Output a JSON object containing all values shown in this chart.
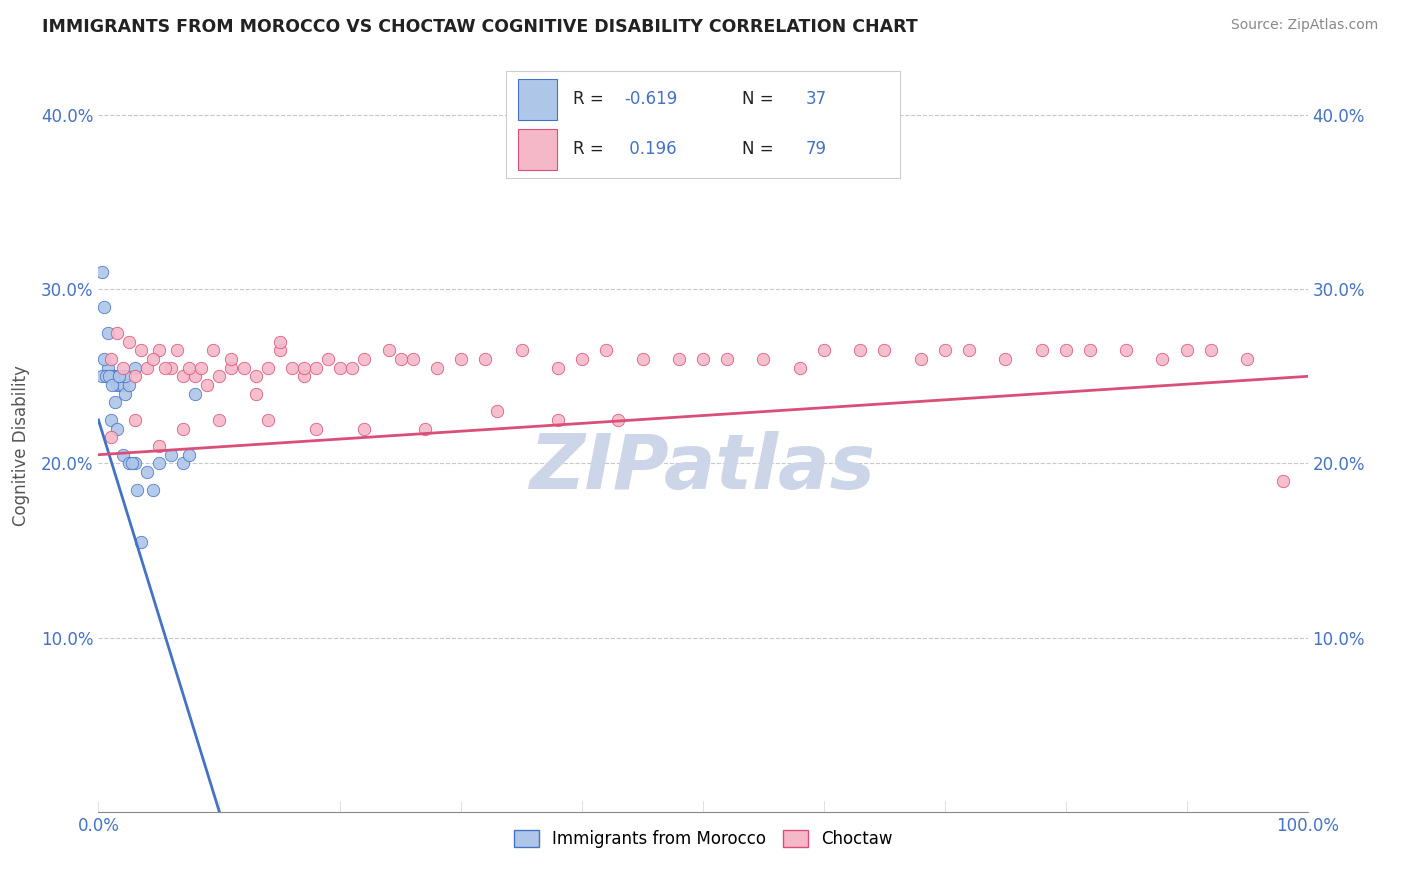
{
  "title": "IMMIGRANTS FROM MOROCCO VS CHOCTAW COGNITIVE DISABILITY CORRELATION CHART",
  "source": "Source: ZipAtlas.com",
  "ylabel": "Cognitive Disability",
  "legend_label1": "Immigrants from Morocco",
  "legend_label2": "Choctaw",
  "R1": -0.619,
  "N1": 37,
  "R2": 0.196,
  "N2": 79,
  "color_blue": "#aec6e8",
  "color_pink": "#f5b8c8",
  "color_blue_line": "#4472c4",
  "color_pink_line": "#d94f7a",
  "color_blue_text": "#4472c4",
  "color_title": "#222222",
  "watermark": "ZIPatlas",
  "blue_scatter_x": [
    0.3,
    0.5,
    0.8,
    1.0,
    1.2,
    1.5,
    1.8,
    2.0,
    2.2,
    2.5,
    3.0,
    3.2,
    4.0,
    5.0,
    6.0,
    7.0,
    7.5,
    8.0,
    1.0,
    1.5,
    2.0,
    2.5,
    3.0,
    0.5,
    0.8,
    1.2,
    1.6,
    2.2,
    0.3,
    0.6,
    0.9,
    1.1,
    1.4,
    1.7,
    2.8,
    3.5,
    4.5
  ],
  "blue_scatter_y": [
    31.0,
    29.0,
    25.5,
    25.0,
    25.0,
    24.5,
    24.5,
    24.5,
    24.0,
    24.5,
    25.5,
    18.5,
    19.5,
    20.0,
    20.5,
    20.0,
    20.5,
    24.0,
    22.5,
    22.0,
    20.5,
    20.0,
    20.0,
    26.0,
    27.5,
    25.0,
    25.0,
    25.0,
    25.0,
    25.0,
    25.0,
    24.5,
    23.5,
    25.0,
    20.0,
    15.5,
    18.5
  ],
  "pink_scatter_x": [
    1.0,
    2.0,
    3.0,
    4.0,
    5.0,
    6.0,
    7.0,
    8.0,
    9.0,
    10.0,
    11.0,
    12.0,
    13.0,
    14.0,
    15.0,
    16.0,
    17.0,
    18.0,
    19.0,
    20.0,
    22.0,
    24.0,
    26.0,
    28.0,
    30.0,
    35.0,
    40.0,
    45.0,
    50.0,
    55.0,
    60.0,
    65.0,
    70.0,
    75.0,
    80.0,
    85.0,
    90.0,
    95.0,
    98.0,
    1.5,
    2.5,
    3.5,
    4.5,
    5.5,
    6.5,
    7.5,
    8.5,
    9.5,
    11.0,
    13.0,
    15.0,
    17.0,
    21.0,
    25.0,
    32.0,
    38.0,
    42.0,
    48.0,
    52.0,
    58.0,
    63.0,
    68.0,
    72.0,
    78.0,
    82.0,
    88.0,
    92.0,
    1.0,
    3.0,
    5.0,
    7.0,
    10.0,
    14.0,
    18.0,
    22.0,
    27.0,
    33.0,
    38.0,
    43.0
  ],
  "pink_scatter_y": [
    26.0,
    25.5,
    25.0,
    25.5,
    26.5,
    25.5,
    25.0,
    25.0,
    24.5,
    25.0,
    25.5,
    25.5,
    24.0,
    25.5,
    26.5,
    25.5,
    25.0,
    25.5,
    26.0,
    25.5,
    26.0,
    26.5,
    26.0,
    25.5,
    26.0,
    26.5,
    26.0,
    26.0,
    26.0,
    26.0,
    26.5,
    26.5,
    26.5,
    26.0,
    26.5,
    26.5,
    26.5,
    26.0,
    19.0,
    27.5,
    27.0,
    26.5,
    26.0,
    25.5,
    26.5,
    25.5,
    25.5,
    26.5,
    26.0,
    25.0,
    27.0,
    25.5,
    25.5,
    26.0,
    26.0,
    25.5,
    26.5,
    26.0,
    26.0,
    25.5,
    26.5,
    26.0,
    26.5,
    26.5,
    26.5,
    26.0,
    26.5,
    21.5,
    22.5,
    21.0,
    22.0,
    22.5,
    22.5,
    22.0,
    22.0,
    22.0,
    23.0,
    22.5,
    22.5
  ],
  "xlim": [
    0,
    100
  ],
  "ylim": [
    0,
    42
  ],
  "ytick_vals": [
    10,
    20,
    30,
    40
  ],
  "ytick_labels": [
    "10.0%",
    "20.0%",
    "30.0%",
    "40.0%"
  ],
  "xtick_vals": [
    0,
    100
  ],
  "xtick_labels": [
    "0.0%",
    "100.0%"
  ],
  "grid_color": "#c8c8c8",
  "bg_color": "#ffffff",
  "watermark_color": "#ccd6e8",
  "watermark_fontsize": 55,
  "blue_line_x": [
    0,
    10
  ],
  "blue_line_y": [
    22.5,
    0
  ],
  "pink_line_x": [
    0,
    100
  ],
  "pink_line_y": [
    20.5,
    25.0
  ]
}
